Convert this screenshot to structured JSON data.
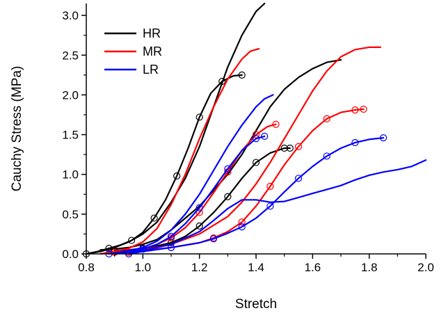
{
  "chart_data": {
    "type": "line",
    "title": "",
    "xlabel": "Stretch",
    "ylabel": "Cauchy Stress (MPa)",
    "xlim": [
      0.8,
      2.0
    ],
    "ylim": [
      0.0,
      3.15
    ],
    "xticks": [
      "0.8",
      "1.0",
      "1.2",
      "1.4",
      "1.6",
      "1.8",
      "2.0"
    ],
    "yticks": [
      "0.0",
      "0.5",
      "1.0",
      "1.5",
      "2.0",
      "2.5",
      "3.0"
    ],
    "grid": false,
    "legend_position": "top-left",
    "legend": [
      {
        "label": "HR",
        "color": "#000000"
      },
      {
        "label": "MR",
        "color": "#ff0000"
      },
      {
        "label": "LR",
        "color": "#0000ff"
      }
    ],
    "series": [
      {
        "group": "HR",
        "color": "#000000",
        "x": [
          0.8,
          0.85,
          0.9,
          0.95,
          1.0,
          1.05,
          1.1,
          1.15,
          1.2,
          1.25,
          1.3,
          1.35,
          1.4,
          1.43
        ],
        "y": [
          0.0,
          0.03,
          0.08,
          0.15,
          0.25,
          0.4,
          0.65,
          0.95,
          1.35,
          1.85,
          2.35,
          2.75,
          3.05,
          3.15
        ]
      },
      {
        "group": "HR",
        "color": "#000000",
        "markers": true,
        "x": [
          0.8,
          0.84,
          0.88,
          0.92,
          0.96,
          1.0,
          1.04,
          1.08,
          1.12,
          1.16,
          1.2,
          1.24,
          1.28,
          1.32,
          1.35
        ],
        "y": [
          0.0,
          0.03,
          0.07,
          0.11,
          0.17,
          0.27,
          0.45,
          0.68,
          0.98,
          1.33,
          1.72,
          2.02,
          2.17,
          2.24,
          2.25
        ]
      },
      {
        "group": "HR",
        "color": "#000000",
        "x": [
          0.85,
          0.9,
          0.95,
          1.0,
          1.05,
          1.1,
          1.15,
          1.2,
          1.25,
          1.3,
          1.35,
          1.4,
          1.45,
          1.5,
          1.55,
          1.6,
          1.65,
          1.7
        ],
        "y": [
          0.05,
          0.06,
          0.08,
          0.12,
          0.18,
          0.3,
          0.45,
          0.6,
          0.8,
          1.0,
          1.25,
          1.55,
          1.85,
          2.07,
          2.22,
          2.33,
          2.41,
          2.44
        ]
      },
      {
        "group": "HR",
        "color": "#000000",
        "markers": true,
        "x": [
          0.9,
          0.95,
          1.0,
          1.05,
          1.1,
          1.15,
          1.2,
          1.25,
          1.3,
          1.35,
          1.4,
          1.45,
          1.5,
          1.52
        ],
        "y": [
          0.04,
          0.05,
          0.07,
          0.1,
          0.14,
          0.22,
          0.35,
          0.52,
          0.72,
          0.95,
          1.15,
          1.27,
          1.33,
          1.33
        ]
      },
      {
        "group": "MR",
        "color": "#ff0000",
        "x": [
          0.85,
          0.9,
          0.95,
          1.0,
          1.05,
          1.1,
          1.15,
          1.2,
          1.25,
          1.3,
          1.35,
          1.38,
          1.41
        ],
        "y": [
          0.0,
          0.03,
          0.07,
          0.15,
          0.32,
          0.62,
          1.0,
          1.45,
          1.85,
          2.2,
          2.45,
          2.55,
          2.58
        ]
      },
      {
        "group": "MR",
        "color": "#ff0000",
        "markers": true,
        "x": [
          0.9,
          0.95,
          1.0,
          1.05,
          1.1,
          1.15,
          1.2,
          1.25,
          1.3,
          1.35,
          1.4,
          1.44,
          1.47
        ],
        "y": [
          0.02,
          0.03,
          0.06,
          0.12,
          0.2,
          0.33,
          0.52,
          0.77,
          1.03,
          1.3,
          1.5,
          1.6,
          1.63
        ]
      },
      {
        "group": "MR",
        "color": "#ff0000",
        "x": [
          0.9,
          1.0,
          1.1,
          1.2,
          1.3,
          1.35,
          1.4,
          1.45,
          1.5,
          1.55,
          1.6,
          1.65,
          1.7,
          1.75,
          1.8,
          1.84
        ],
        "y": [
          0.0,
          0.05,
          0.12,
          0.25,
          0.47,
          0.65,
          0.88,
          1.15,
          1.45,
          1.75,
          2.05,
          2.3,
          2.48,
          2.57,
          2.6,
          2.6
        ]
      },
      {
        "group": "MR",
        "color": "#ff0000",
        "markers": true,
        "x": [
          0.95,
          1.0,
          1.1,
          1.2,
          1.25,
          1.3,
          1.35,
          1.4,
          1.45,
          1.5,
          1.55,
          1.6,
          1.65,
          1.7,
          1.75,
          1.78
        ],
        "y": [
          0.02,
          0.04,
          0.08,
          0.14,
          0.2,
          0.28,
          0.4,
          0.6,
          0.85,
          1.12,
          1.35,
          1.55,
          1.7,
          1.78,
          1.81,
          1.82
        ]
      },
      {
        "group": "LR",
        "color": "#0000ff",
        "x": [
          0.88,
          0.95,
          1.0,
          1.05,
          1.1,
          1.15,
          1.2,
          1.25,
          1.3,
          1.35,
          1.4,
          1.43,
          1.46
        ],
        "y": [
          0.0,
          0.04,
          0.08,
          0.16,
          0.3,
          0.5,
          0.75,
          1.05,
          1.35,
          1.62,
          1.85,
          1.95,
          2.0
        ]
      },
      {
        "group": "LR",
        "color": "#0000ff",
        "markers": true,
        "x": [
          0.88,
          0.95,
          1.0,
          1.05,
          1.1,
          1.15,
          1.2,
          1.25,
          1.3,
          1.35,
          1.4,
          1.43
        ],
        "y": [
          0.0,
          0.03,
          0.06,
          0.12,
          0.22,
          0.38,
          0.58,
          0.82,
          1.07,
          1.3,
          1.45,
          1.48
        ]
      },
      {
        "group": "LR",
        "color": "#0000ff",
        "x": [
          0.9,
          1.0,
          1.1,
          1.2,
          1.25,
          1.3,
          1.35,
          1.4,
          1.45,
          1.5,
          1.55,
          1.6,
          1.65,
          1.7,
          1.75,
          1.8,
          1.85,
          1.9,
          1.95,
          2.0
        ],
        "y": [
          0.0,
          0.04,
          0.12,
          0.28,
          0.42,
          0.57,
          0.68,
          0.68,
          0.65,
          0.66,
          0.71,
          0.76,
          0.81,
          0.86,
          0.93,
          0.99,
          1.03,
          1.06,
          1.1,
          1.18
        ]
      },
      {
        "group": "LR",
        "color": "#0000ff",
        "markers": true,
        "x": [
          0.95,
          1.0,
          1.1,
          1.2,
          1.25,
          1.3,
          1.35,
          1.4,
          1.45,
          1.5,
          1.55,
          1.6,
          1.65,
          1.7,
          1.75,
          1.8,
          1.85
        ],
        "y": [
          0.0,
          0.03,
          0.08,
          0.14,
          0.19,
          0.26,
          0.34,
          0.45,
          0.6,
          0.78,
          0.95,
          1.1,
          1.23,
          1.33,
          1.4,
          1.44,
          1.46
        ]
      }
    ]
  }
}
